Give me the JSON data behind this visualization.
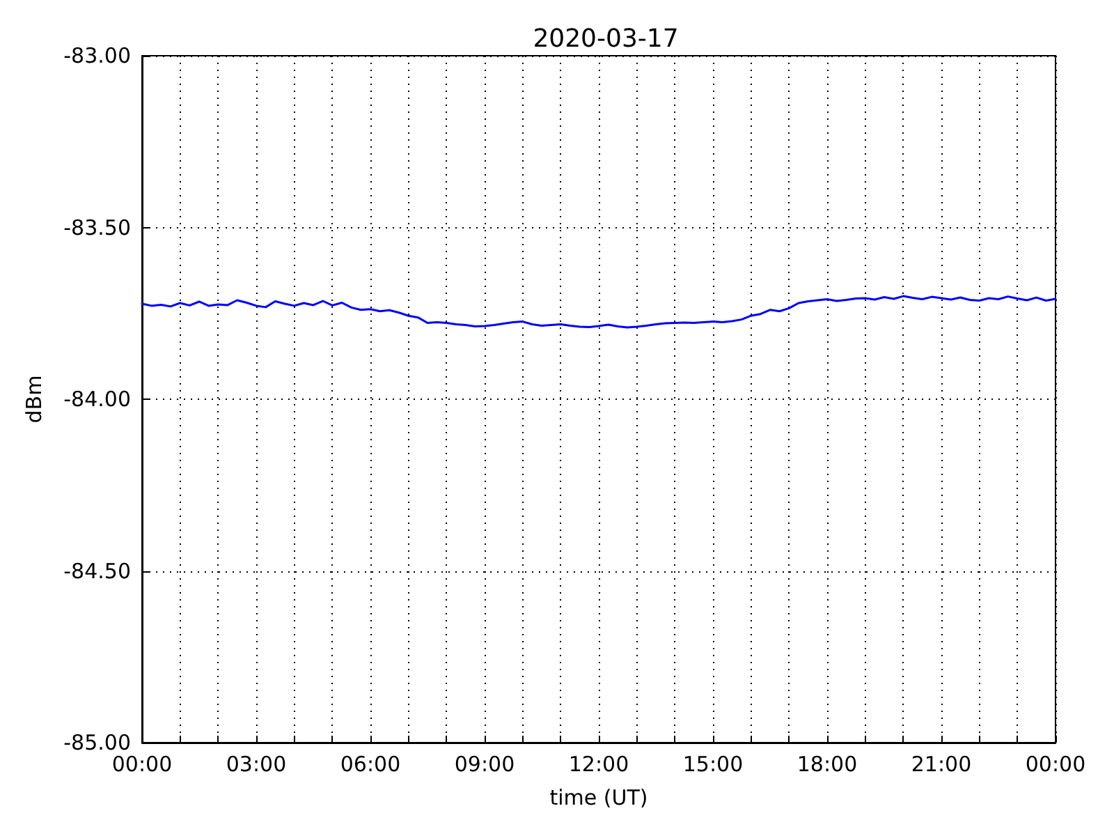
{
  "chart_data": {
    "type": "line",
    "title": "2020-03-17",
    "xlabel": "time (UT)",
    "ylabel": "dBm",
    "xlim": [
      0,
      24
    ],
    "ylim": [
      -85,
      -83
    ],
    "xticks": [
      {
        "value": 0,
        "label": "00:00"
      },
      {
        "value": 1,
        "label": null
      },
      {
        "value": 2,
        "label": null
      },
      {
        "value": 3,
        "label": "03:00"
      },
      {
        "value": 4,
        "label": null
      },
      {
        "value": 5,
        "label": null
      },
      {
        "value": 6,
        "label": "06:00"
      },
      {
        "value": 7,
        "label": null
      },
      {
        "value": 8,
        "label": null
      },
      {
        "value": 9,
        "label": "09:00"
      },
      {
        "value": 10,
        "label": null
      },
      {
        "value": 11,
        "label": null
      },
      {
        "value": 12,
        "label": "12:00"
      },
      {
        "value": 13,
        "label": null
      },
      {
        "value": 14,
        "label": null
      },
      {
        "value": 15,
        "label": "15:00"
      },
      {
        "value": 16,
        "label": null
      },
      {
        "value": 17,
        "label": null
      },
      {
        "value": 18,
        "label": "18:00"
      },
      {
        "value": 19,
        "label": null
      },
      {
        "value": 20,
        "label": null
      },
      {
        "value": 21,
        "label": "21:00"
      },
      {
        "value": 22,
        "label": null
      },
      {
        "value": 23,
        "label": null
      },
      {
        "value": 24,
        "label": "00:00"
      }
    ],
    "yticks": [
      {
        "value": -85,
        "label": "-85.00"
      },
      {
        "value": -84.5,
        "label": "-84.50"
      },
      {
        "value": -84,
        "label": "-84.00"
      },
      {
        "value": -83.5,
        "label": "-83.50"
      },
      {
        "value": -83,
        "label": "-83.00"
      }
    ],
    "grid": true,
    "marker": "none",
    "line_style": "solid",
    "x": [
      0,
      0.25,
      0.5,
      0.75,
      1,
      1.25,
      1.5,
      1.75,
      2,
      2.25,
      2.5,
      2.75,
      3,
      3.25,
      3.5,
      3.75,
      4,
      4.25,
      4.5,
      4.75,
      5,
      5.25,
      5.5,
      5.75,
      6,
      6.25,
      6.5,
      6.75,
      7,
      7.25,
      7.5,
      7.75,
      8,
      8.25,
      8.5,
      8.75,
      9,
      9.25,
      9.5,
      9.75,
      10,
      10.25,
      10.5,
      10.75,
      11,
      11.25,
      11.5,
      11.75,
      12,
      12.25,
      12.5,
      12.75,
      13,
      13.25,
      13.5,
      13.75,
      14,
      14.25,
      14.5,
      14.75,
      15,
      15.25,
      15.5,
      15.75,
      16,
      16.25,
      16.5,
      16.75,
      17,
      17.25,
      17.5,
      17.75,
      18,
      18.25,
      18.5,
      18.75,
      19,
      19.25,
      19.5,
      19.75,
      20,
      20.25,
      20.5,
      20.75,
      21,
      21.25,
      21.5,
      21.75,
      22,
      22.25,
      22.5,
      22.75,
      23,
      23.25,
      23.5,
      23.75,
      24
    ],
    "series": [
      {
        "color": "#0000ff",
        "values": [
          -83.722,
          -83.728,
          -83.725,
          -83.73,
          -83.72,
          -83.727,
          -83.716,
          -83.728,
          -83.724,
          -83.726,
          -83.712,
          -83.719,
          -83.728,
          -83.732,
          -83.715,
          -83.722,
          -83.728,
          -83.72,
          -83.726,
          -83.714,
          -83.727,
          -83.719,
          -83.733,
          -83.74,
          -83.738,
          -83.744,
          -83.741,
          -83.748,
          -83.757,
          -83.762,
          -83.778,
          -83.776,
          -83.778,
          -83.782,
          -83.784,
          -83.788,
          -83.787,
          -83.784,
          -83.78,
          -83.776,
          -83.774,
          -83.782,
          -83.786,
          -83.784,
          -83.782,
          -83.786,
          -83.789,
          -83.79,
          -83.787,
          -83.783,
          -83.788,
          -83.791,
          -83.789,
          -83.786,
          -83.782,
          -83.779,
          -83.778,
          -83.777,
          -83.778,
          -83.776,
          -83.774,
          -83.776,
          -83.773,
          -83.768,
          -83.757,
          -83.752,
          -83.74,
          -83.744,
          -83.735,
          -83.72,
          -83.715,
          -83.712,
          -83.709,
          -83.714,
          -83.711,
          -83.707,
          -83.706,
          -83.71,
          -83.703,
          -83.708,
          -83.7,
          -83.705,
          -83.709,
          -83.702,
          -83.706,
          -83.71,
          -83.704,
          -83.711,
          -83.713,
          -83.706,
          -83.709,
          -83.701,
          -83.707,
          -83.712,
          -83.704,
          -83.713,
          -83.708
        ]
      }
    ]
  }
}
